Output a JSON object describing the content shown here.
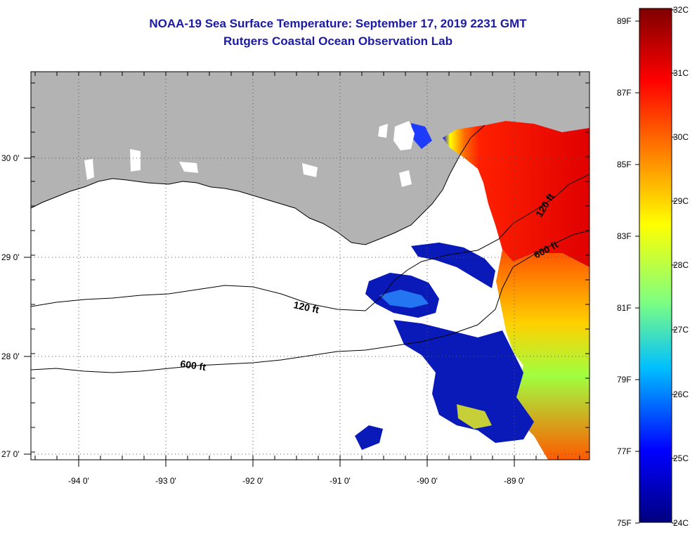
{
  "header": {
    "title": "NOAA-19 Sea Surface Temperature:  September 17, 2019 2231 GMT",
    "subtitle": "Rutgers Coastal Ocean Observation Lab"
  },
  "map": {
    "lon_labels": [
      "-94 0'",
      "-93 0'",
      "-92 0'",
      "-91 0'",
      "-90 0'",
      "-89 0'"
    ],
    "lat_labels": [
      "30 0'",
      "29 0'",
      "28 0'",
      "27 0'"
    ],
    "contours": [
      "120 ft",
      "600 ft",
      "600 ft",
      "120 ft"
    ],
    "land_color": "#b3b3b3",
    "cloud_color": "#ffffff"
  },
  "colorbar": {
    "fahrenheit": [
      "89F",
      "87F",
      "85F",
      "83F",
      "81F",
      "79F",
      "77F",
      "75F"
    ],
    "celsius": [
      "32C",
      "31C",
      "30C",
      "29C",
      "28C",
      "27C",
      "26C",
      "25C",
      "24C"
    ],
    "colors": [
      "#00007f",
      "#0000ff",
      "#00bfff",
      "#7fff7f",
      "#ffff00",
      "#ff7f00",
      "#ff0000",
      "#7f0000"
    ]
  }
}
